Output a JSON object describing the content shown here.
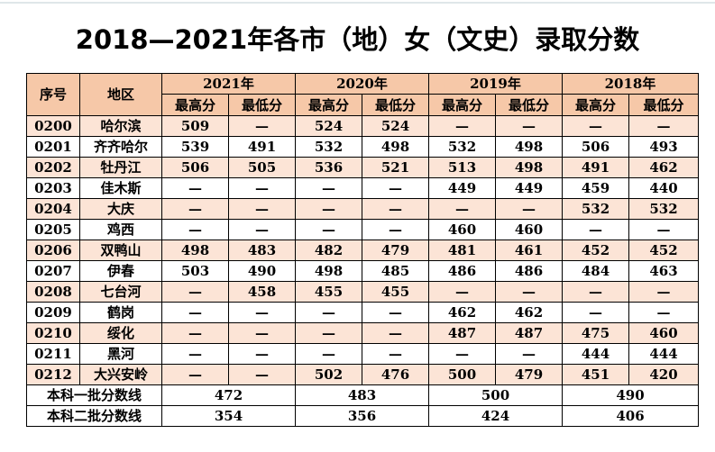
{
  "title": "2018—2021年各市（地）女（文史）录取分数",
  "headers": {
    "seq": "序号",
    "region": "地区",
    "years": [
      "2021年",
      "2020年",
      "2019年",
      "2018年"
    ],
    "max": "最高分",
    "min": "最低分"
  },
  "rows": [
    {
      "code": "0200",
      "region": "哈尔滨",
      "scores": [
        "509",
        "—",
        "524",
        "524",
        "—",
        "—",
        "—",
        "—"
      ]
    },
    {
      "code": "0201",
      "region": "齐齐哈尔",
      "scores": [
        "539",
        "491",
        "532",
        "498",
        "532",
        "498",
        "506",
        "493"
      ]
    },
    {
      "code": "0202",
      "region": "牡丹江",
      "scores": [
        "506",
        "505",
        "536",
        "521",
        "513",
        "498",
        "491",
        "462"
      ]
    },
    {
      "code": "0203",
      "region": "佳木斯",
      "scores": [
        "—",
        "—",
        "—",
        "—",
        "449",
        "449",
        "459",
        "440"
      ]
    },
    {
      "code": "0204",
      "region": "大庆",
      "scores": [
        "—",
        "—",
        "—",
        "—",
        "—",
        "—",
        "532",
        "532"
      ]
    },
    {
      "code": "0205",
      "region": "鸡西",
      "scores": [
        "—",
        "—",
        "—",
        "—",
        "460",
        "460",
        "—",
        "—"
      ]
    },
    {
      "code": "0206",
      "region": "双鸭山",
      "scores": [
        "498",
        "483",
        "482",
        "479",
        "481",
        "461",
        "452",
        "452"
      ]
    },
    {
      "code": "0207",
      "region": "伊春",
      "scores": [
        "503",
        "490",
        "498",
        "485",
        "486",
        "486",
        "484",
        "463"
      ]
    },
    {
      "code": "0208",
      "region": "七台河",
      "scores": [
        "—",
        "458",
        "455",
        "455",
        "—",
        "—",
        "—",
        "—"
      ]
    },
    {
      "code": "0209",
      "region": "鹤岗",
      "scores": [
        "—",
        "—",
        "—",
        "—",
        "462",
        "462",
        "—",
        "—"
      ]
    },
    {
      "code": "0210",
      "region": "绥化",
      "scores": [
        "—",
        "—",
        "—",
        "—",
        "487",
        "487",
        "475",
        "460"
      ]
    },
    {
      "code": "0211",
      "region": "黑河",
      "scores": [
        "—",
        "—",
        "—",
        "—",
        "—",
        "—",
        "444",
        "444"
      ]
    },
    {
      "code": "0212",
      "region": "大兴安岭",
      "scores": [
        "—",
        "—",
        "502",
        "476",
        "500",
        "479",
        "451",
        "420"
      ]
    }
  ],
  "batch_lines": [
    {
      "label": "本科一批分数线",
      "values": [
        "472",
        "483",
        "500",
        "490"
      ]
    },
    {
      "label": "本科二批分数线",
      "values": [
        "354",
        "356",
        "424",
        "406"
      ]
    }
  ]
}
